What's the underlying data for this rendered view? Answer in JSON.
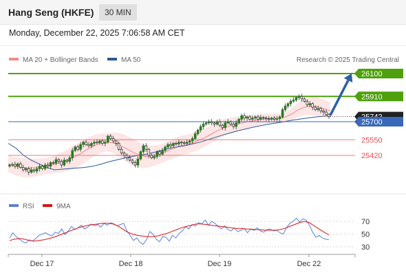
{
  "header": {
    "title": "Hang Seng (HKFE)",
    "interval": "30 MIN"
  },
  "timestamp": "Monday, December 22, 2025 7:06:58 AM CET",
  "credit": "Research © 2025 Trading Central",
  "colors": {
    "bollinger": "#f28b8b",
    "ma50": "#2b5797",
    "resistance": "#4ea10c",
    "support": "#ea4c4c",
    "pivot": "#3a68b8",
    "arrow": "#2b5fa8",
    "rsi": "#5b7fd6",
    "rsi_ma": "#dd1111",
    "candle": "#2a7a1f",
    "price_tag": "#222222"
  },
  "chart_data": [
    {
      "type": "candlestick",
      "legend": [
        {
          "label": "MA 20 + Bollinger Bands",
          "color": "#f28b8b"
        },
        {
          "label": "MA 50",
          "color": "#2b5797"
        }
      ],
      "x_labels": [
        "Dec 17",
        "Dec 18",
        "Dec 19",
        "Dec 22"
      ],
      "levels": [
        {
          "value": 26100,
          "label": "26100",
          "kind": "resistance"
        },
        {
          "value": 25910,
          "label": "25910",
          "kind": "resistance"
        },
        {
          "value": 25700,
          "label": "25700",
          "kind": "pivot"
        },
        {
          "value": 25550,
          "label": "25550",
          "kind": "support"
        },
        {
          "value": 25420,
          "label": "25420",
          "kind": "support"
        }
      ],
      "last_price": {
        "value": 25742,
        "label": "25742"
      },
      "forecast_arrow": {
        "from": 25742,
        "to": 26100
      },
      "closes": [
        25340,
        25345,
        25330,
        25350,
        25320,
        25300,
        25310,
        25280,
        25300,
        25290,
        25310,
        25330,
        25310,
        25340,
        25330,
        25360,
        25355,
        25385,
        25370,
        25340,
        25380,
        25370,
        25400,
        25460,
        25490,
        25470,
        25510,
        25530,
        25510,
        25500,
        25520,
        25530,
        25525,
        25540,
        25520,
        25530,
        25580,
        25560,
        25540,
        25520,
        25470,
        25440,
        25420,
        25400,
        25380,
        25360,
        25340,
        25390,
        25450,
        25500,
        25470,
        25420,
        25400,
        25410,
        25450,
        25430,
        25460,
        25490,
        25510,
        25500,
        25520,
        25515,
        25530,
        25525,
        25520,
        25530,
        25540,
        25560,
        25600,
        25630,
        25660,
        25680,
        25690,
        25700,
        25690,
        25680,
        25700,
        25670,
        25650,
        25690,
        25700,
        25680,
        25660,
        25690,
        25720,
        25750,
        25730,
        25740,
        25720,
        25730,
        25740,
        25720,
        25735,
        25730,
        25725,
        25720,
        25730,
        25720,
        25725,
        25740,
        25800,
        25830,
        25850,
        25870,
        25880,
        25900,
        25910,
        25890,
        25870,
        25840,
        25850,
        25820,
        25800,
        25810,
        25790,
        25780,
        25760,
        25742
      ],
      "ma50": [
        25520,
        25480,
        25420,
        25380,
        25350,
        25320,
        25300,
        25305,
        25310,
        25315,
        25320,
        25330,
        25345,
        25365,
        25380,
        25395,
        25410,
        25420,
        25430,
        25445,
        25462,
        25478,
        25490,
        25500,
        25515,
        25530,
        25550,
        25570,
        25590,
        25608,
        25625,
        25640,
        25655,
        25668,
        25680,
        25690,
        25700,
        25712,
        25722,
        25730,
        25738,
        25745,
        25750
      ],
      "ma20": [
        25350,
        25330,
        25320,
        25315,
        25318,
        25325,
        25335,
        25345,
        25360,
        25380,
        25405,
        25435,
        25470,
        25500,
        25520,
        25530,
        25525,
        25505,
        25475,
        25445,
        25420,
        25410,
        25415,
        25430,
        25450,
        25475,
        25495,
        25510,
        25525,
        25545,
        25570,
        25600,
        25630,
        25655,
        25670,
        25682,
        25695,
        25705,
        25715,
        25722,
        25726,
        25728,
        25735,
        25760,
        25795,
        25820,
        25830,
        25825,
        25810,
        25790
      ],
      "bb_width": [
        70,
        75,
        80,
        78,
        75,
        70,
        68,
        72,
        80,
        90,
        98,
        100,
        95,
        88,
        80,
        75,
        85,
        100,
        110,
        112,
        105,
        95,
        85,
        80,
        78,
        80,
        82,
        80,
        78,
        76,
        75,
        74,
        72,
        70,
        66,
        60,
        55,
        50,
        46,
        42,
        40,
        40,
        42,
        48,
        58,
        68,
        75,
        78,
        74,
        70
      ]
    },
    {
      "type": "line",
      "legend": [
        {
          "label": "RSI",
          "color": "#5b7fd6"
        },
        {
          "label": "9MA",
          "color": "#dd1111"
        }
      ],
      "y_ticks": [
        70,
        50,
        30
      ],
      "ylim": [
        20,
        80
      ],
      "series": [
        {
          "name": "RSI",
          "values": [
            44,
            52,
            46,
            42,
            38,
            36,
            41,
            39,
            43,
            48,
            50,
            52,
            49,
            47,
            53,
            51,
            58,
            49,
            55,
            62,
            57,
            60,
            64,
            58,
            61,
            66,
            63,
            65,
            61,
            67,
            64,
            68,
            66,
            63,
            65,
            67,
            55,
            48,
            40,
            44,
            37,
            34,
            41,
            54,
            50,
            42,
            38,
            46,
            45,
            39,
            48,
            44,
            51,
            55,
            62,
            58,
            65,
            63,
            68,
            66,
            72,
            64,
            70,
            67,
            62,
            58,
            63,
            57,
            55,
            60,
            54,
            56,
            59,
            52,
            58,
            56,
            60,
            55,
            53,
            57,
            58,
            55,
            56,
            52,
            50,
            60,
            67,
            70,
            75,
            69,
            74,
            72,
            64,
            53,
            45,
            48,
            44,
            42,
            41
          ]
        },
        {
          "name": "9MA",
          "values": [
            40,
            42,
            43,
            42,
            40,
            39,
            40,
            41,
            43,
            45,
            48,
            51,
            54,
            57,
            60,
            62,
            64,
            65,
            66,
            67,
            67,
            66,
            63,
            58,
            53,
            50,
            48,
            47,
            46,
            46,
            47,
            49,
            51,
            54,
            57,
            60,
            62,
            64,
            66,
            66,
            65,
            64,
            63,
            62,
            61,
            60,
            59,
            59,
            58,
            58,
            57,
            57,
            56,
            56,
            56,
            57,
            59,
            62,
            65,
            68,
            70,
            68,
            63,
            58,
            53,
            49
          ]
        }
      ]
    }
  ]
}
